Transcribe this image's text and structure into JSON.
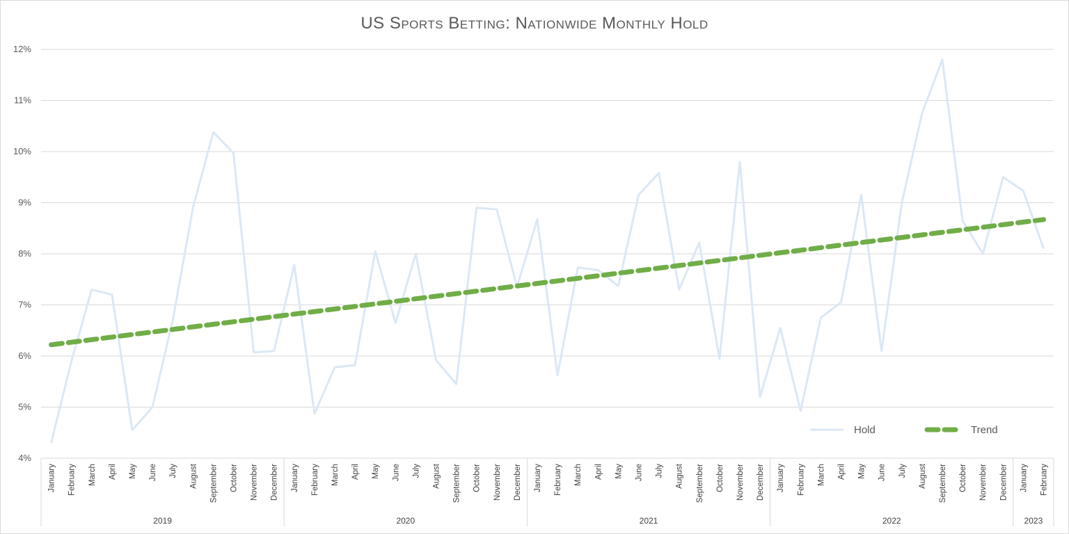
{
  "chart_data": {
    "type": "line",
    "title": "US Sports Betting: Nationwide Monthly Hold",
    "xlabel": "",
    "ylabel": "",
    "ylim": [
      4,
      12
    ],
    "y_ticks": [
      "4%",
      "5%",
      "6%",
      "7%",
      "8%",
      "9%",
      "10%",
      "11%",
      "12%"
    ],
    "grid": true,
    "legend_position": "bottom-right",
    "groups": [
      {
        "label": "2019",
        "months": [
          "January",
          "February",
          "March",
          "April",
          "May",
          "June",
          "July",
          "August",
          "September",
          "October",
          "November",
          "December"
        ]
      },
      {
        "label": "2020",
        "months": [
          "January",
          "February",
          "March",
          "April",
          "May",
          "June",
          "July",
          "August",
          "September",
          "October",
          "November",
          "December"
        ]
      },
      {
        "label": "2021",
        "months": [
          "January",
          "February",
          "March",
          "April",
          "May",
          "June",
          "July",
          "August",
          "September",
          "October",
          "November",
          "December"
        ]
      },
      {
        "label": "2022",
        "months": [
          "January",
          "February",
          "March",
          "April",
          "May",
          "June",
          "July",
          "August",
          "September",
          "October",
          "November",
          "December"
        ]
      },
      {
        "label": "2023",
        "months": [
          "January",
          "February"
        ]
      }
    ],
    "series": [
      {
        "name": "Hold",
        "color": "#dbe8f5",
        "style": "solid",
        "values": [
          4.3,
          5.9,
          7.3,
          7.2,
          4.55,
          5.0,
          6.7,
          8.9,
          10.38,
          9.97,
          6.07,
          6.1,
          7.78,
          4.87,
          5.78,
          5.82,
          8.05,
          6.65,
          8.0,
          5.92,
          5.45,
          8.9,
          8.87,
          7.35,
          8.68,
          5.62,
          7.73,
          7.68,
          7.37,
          9.15,
          9.58,
          7.3,
          8.22,
          5.95,
          9.8,
          5.2,
          6.55,
          4.93,
          6.75,
          7.05,
          9.15,
          6.1,
          9.0,
          10.75,
          11.8,
          8.65,
          8.0,
          9.5,
          9.23,
          8.1
        ]
      },
      {
        "name": "Trend",
        "color": "#70ad47",
        "style": "dashed",
        "values": [
          6.22,
          6.27,
          6.32,
          6.37,
          6.42,
          6.47,
          6.52,
          6.57,
          6.62,
          6.67,
          6.72,
          6.77,
          6.82,
          6.87,
          6.92,
          6.97,
          7.02,
          7.07,
          7.12,
          7.17,
          7.22,
          7.27,
          7.32,
          7.37,
          7.42,
          7.47,
          7.52,
          7.57,
          7.62,
          7.67,
          7.72,
          7.77,
          7.82,
          7.87,
          7.92,
          7.97,
          8.02,
          8.07,
          8.12,
          8.17,
          8.22,
          8.27,
          8.32,
          8.37,
          8.42,
          8.47,
          8.52,
          8.57,
          8.62,
          8.67
        ]
      }
    ]
  }
}
